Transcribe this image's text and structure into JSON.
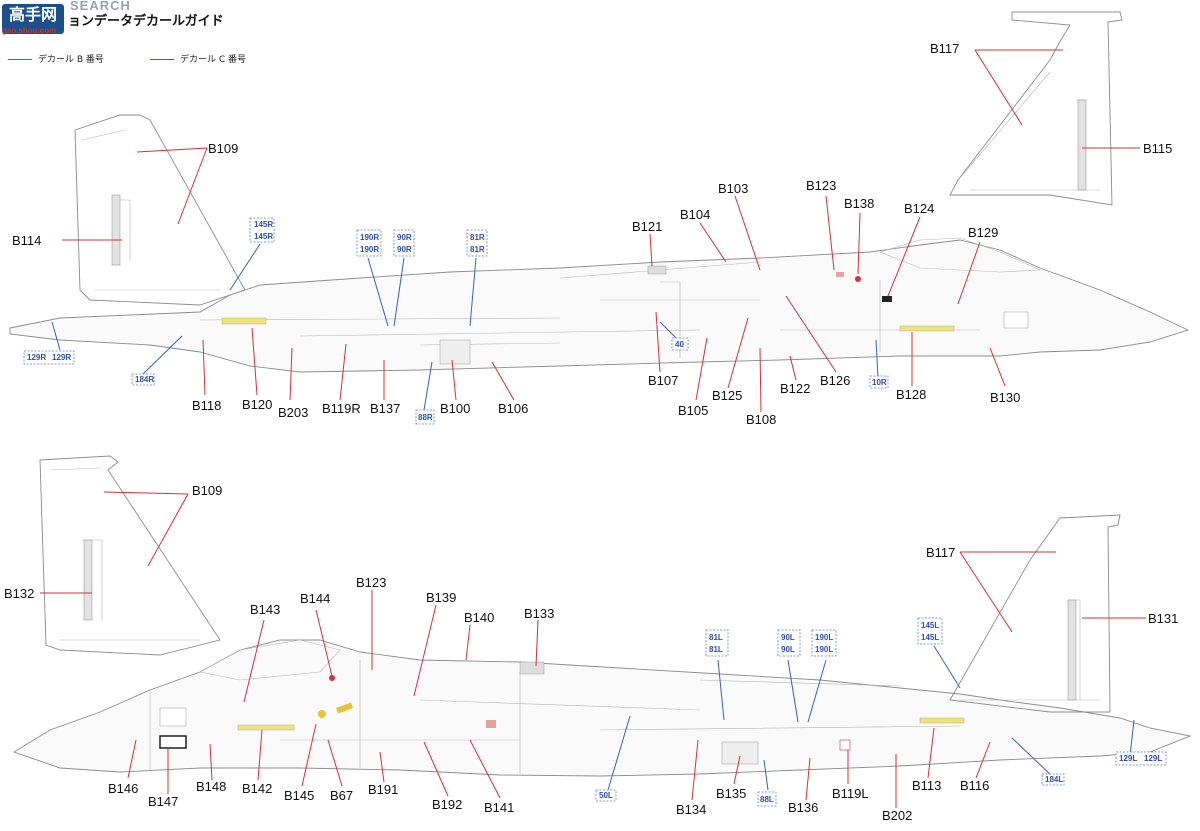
{
  "header": {
    "logo_text": "高手网",
    "logo_sub": "gao.shou.com",
    "watermark": "SEARCH",
    "title": "ョンデータデカールガイド"
  },
  "legend": {
    "b_label": "デカール B 番号",
    "c_label": "デカール C 番号",
    "b_color": "#d6313a",
    "c_color": "#3a5fc4"
  },
  "labels": {
    "top": {
      "B109": "B109",
      "B114": "B114",
      "B117": "B117",
      "B115": "B115",
      "B103": "B103",
      "B123": "B123",
      "B138": "B138",
      "B124": "B124",
      "B104": "B104",
      "B121": "B121",
      "B129": "B129",
      "B118": "B118",
      "B120": "B120",
      "B203": "B203",
      "B119R": "B119R",
      "B137": "B137",
      "B100": "B100",
      "B106": "B106",
      "B107": "B107",
      "B105": "B105",
      "B125": "B125",
      "B108": "B108",
      "B122": "B122",
      "B126": "B126",
      "B128": "B128",
      "B130": "B130"
    },
    "top_c": {
      "c145R_a": "145R",
      "c145R_b": "145R",
      "c190R_a": "190R",
      "c190R_b": "190R",
      "c90R_a": "90R",
      "c90R_b": "90R",
      "c81R_a": "81R",
      "c81R_b": "81R",
      "c129R_a": "129R",
      "c129R_b": "129R",
      "c184R": "184R",
      "c88R": "88R",
      "c40": "40",
      "c10R": "10R"
    },
    "bottom": {
      "B109": "B109",
      "B132": "B132",
      "B117": "B117",
      "B131": "B131",
      "B123": "B123",
      "B139": "B139",
      "B133": "B133",
      "B143": "B143",
      "B144": "B144",
      "B140": "B140",
      "B146": "B146",
      "B147": "B147",
      "B148": "B148",
      "B142": "B142",
      "B145": "B145",
      "B67": "B67",
      "B191": "B191",
      "B192": "B192",
      "B141": "B141",
      "B134": "B134",
      "B135": "B135",
      "B136": "B136",
      "B119L": "B119L",
      "B202": "B202",
      "B113": "B113",
      "B116": "B116"
    },
    "bottom_c": {
      "c81L_a": "81L",
      "c81L_b": "81L",
      "c90L_a": "90L",
      "c90L_b": "90L",
      "c190L_a": "190L",
      "c190L_b": "190L",
      "c145L_a": "145L",
      "c145L_b": "145L",
      "c129L_a": "129L",
      "c129L_b": "129L",
      "c184L": "184L",
      "c50L": "50L",
      "c88L": "88L"
    }
  }
}
